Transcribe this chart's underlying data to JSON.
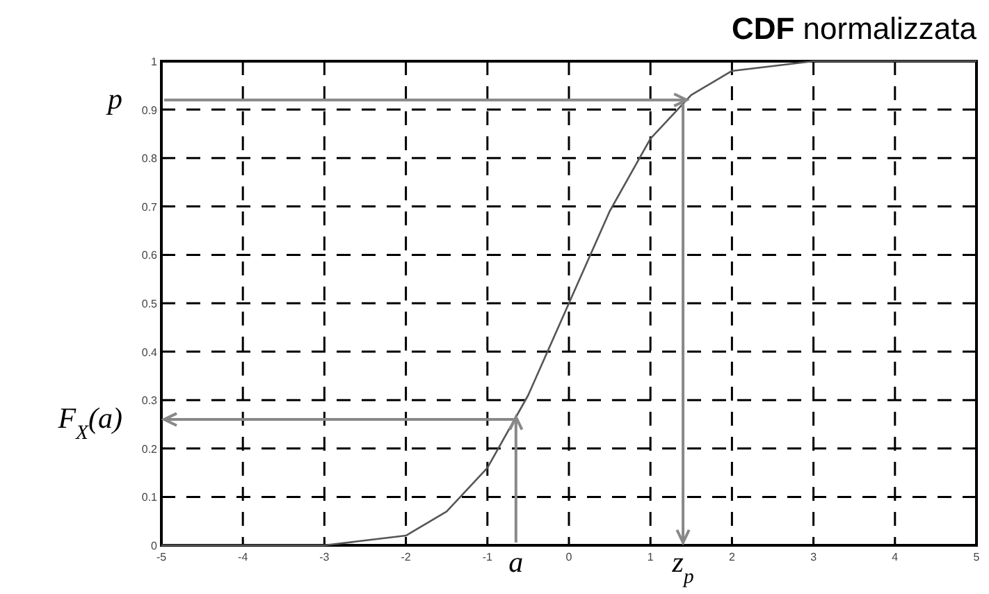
{
  "chart_data": {
    "type": "line",
    "title": "CDF normalizzata",
    "x": [
      -5,
      -4.5,
      -4,
      -3.5,
      -3,
      -2.5,
      -2,
      -1.5,
      -1,
      -0.5,
      0,
      0.5,
      1,
      1.5,
      2,
      2.5,
      3,
      3.5,
      4,
      4.5,
      5
    ],
    "series": [
      {
        "color": "#555555",
        "values": [
          0,
          0,
          0,
          0,
          0,
          0.01,
          0.02,
          0.07,
          0.16,
          0.31,
          0.5,
          0.69,
          0.84,
          0.93,
          0.98,
          0.99,
          1,
          1,
          1,
          1,
          1
        ]
      }
    ],
    "xlim": [
      -5,
      5
    ],
    "xticks": [
      -5,
      -4,
      -3,
      -2,
      -1,
      0,
      1,
      2,
      3,
      4,
      5
    ],
    "ylim": [
      0,
      1
    ],
    "yticks": [
      0,
      0.1,
      0.2,
      0.3,
      0.4,
      0.5,
      0.6,
      0.7,
      0.8,
      0.9,
      1
    ],
    "grid": true,
    "marker": "none",
    "line_style": "solid",
    "ref_lines": [
      {
        "axis": "y",
        "value": 0.92,
        "label": "p",
        "color": "#888888"
      },
      {
        "axis": "x",
        "value": 1.4,
        "label": "z$_{p}$",
        "color": "#888888"
      },
      {
        "axis": "x",
        "value": -0.65,
        "label": "a",
        "color": "#888888"
      },
      {
        "axis": "y",
        "value": 0.26,
        "label": "F$_{X}$(a)",
        "color": "#888888"
      }
    ]
  }
}
